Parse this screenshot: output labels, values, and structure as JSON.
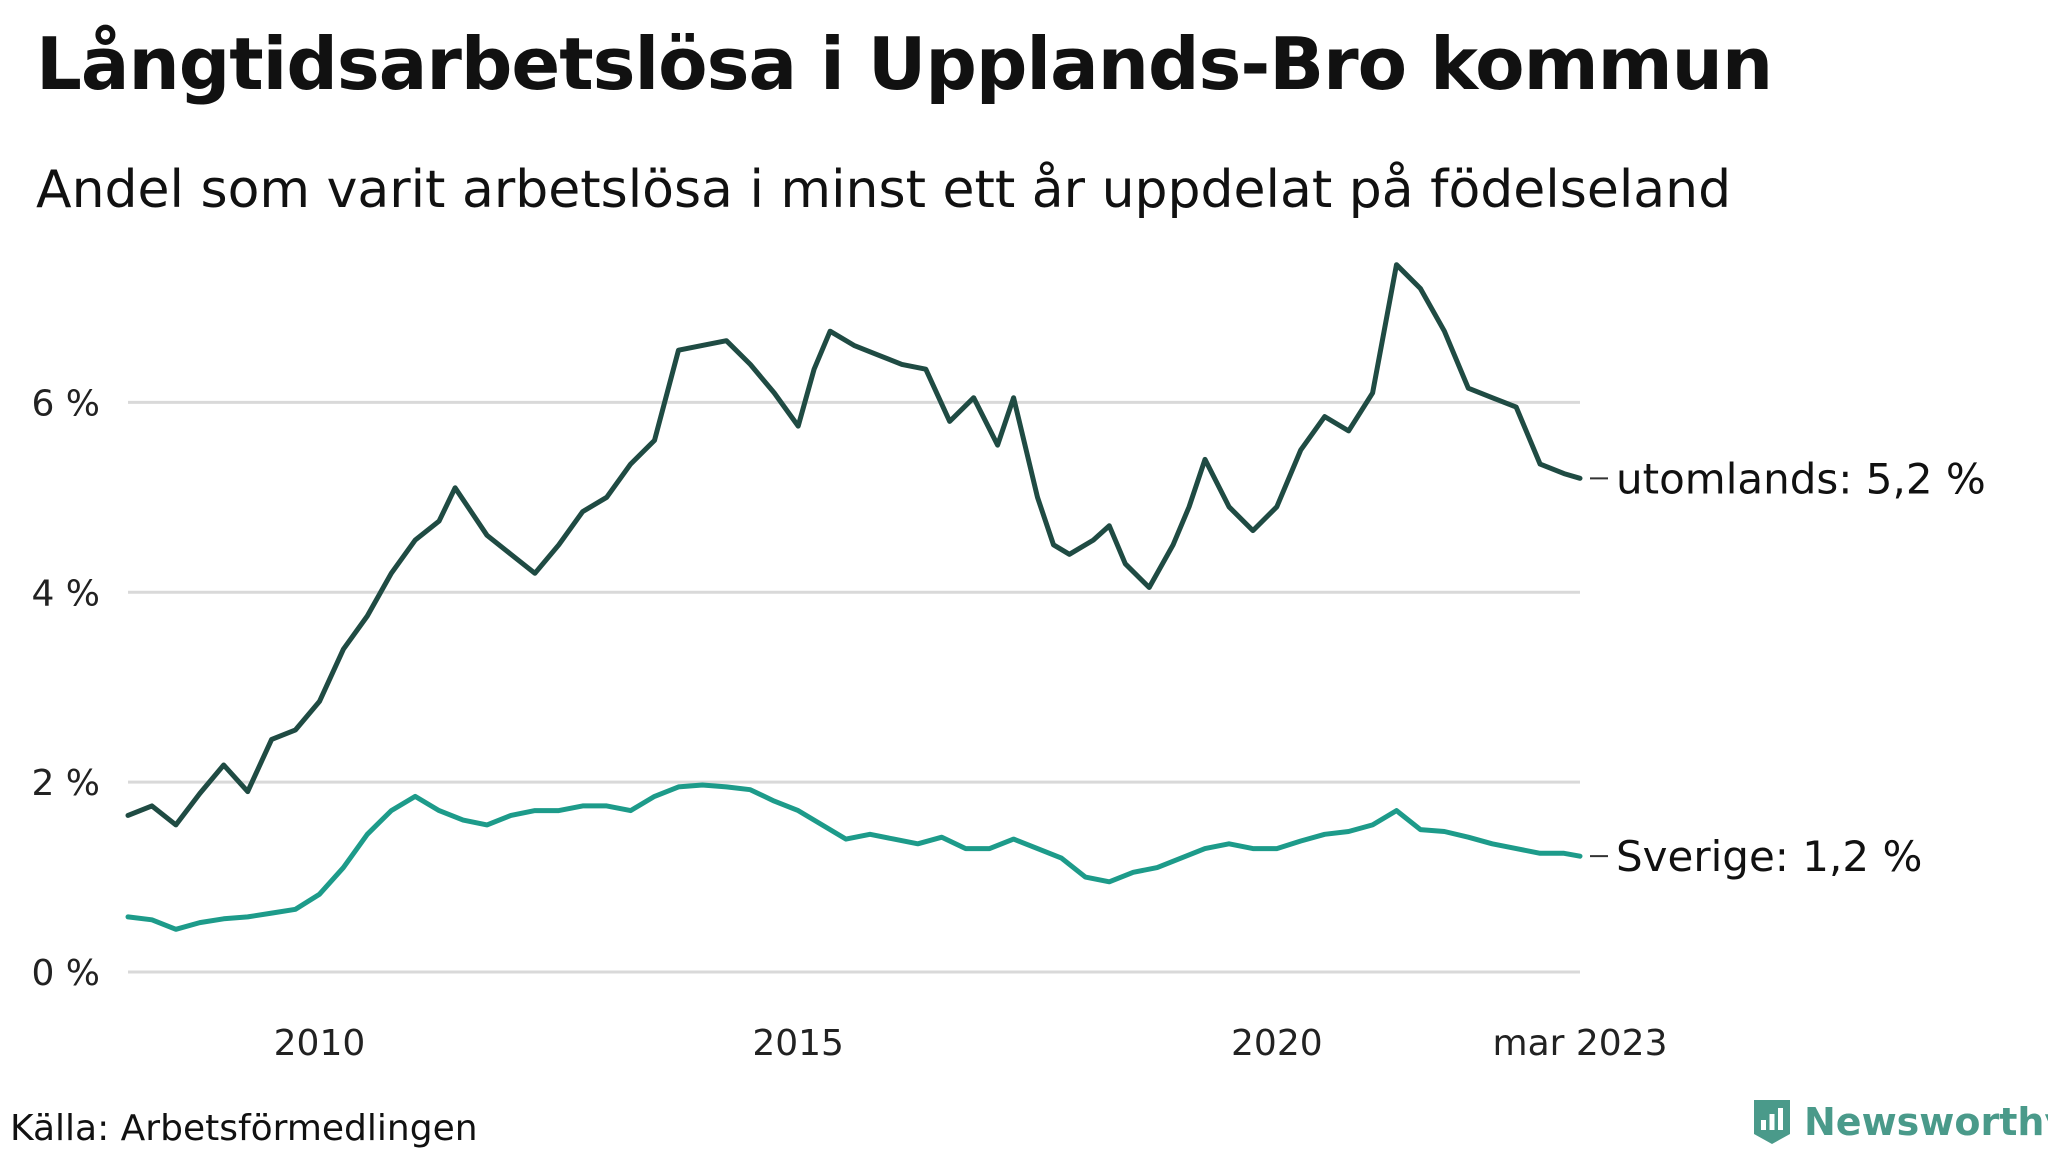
{
  "title": "Långtidsarbetslösa i Upplands-Bro kommun",
  "subtitle": "Andel som varit arbetslösa i minst ett år uppdelat på födelseland",
  "source": "Källa: Arbetsförmedlingen",
  "brand": "Newsworthy",
  "colors": {
    "utomlands": "#1f4b43",
    "sverige": "#1d9b8a",
    "grid": "#d9d9d9",
    "brand": "#4a9a8a"
  },
  "chart_data": {
    "type": "line",
    "title": "Långtidsarbetslösa i Upplands-Bro kommun",
    "subtitle": "Andel som varit arbetslösa i minst ett år uppdelat på födelseland",
    "x_range": [
      "2008-01",
      "2023-03"
    ],
    "ylim": [
      0,
      7.5
    ],
    "y_ticks": [
      0,
      2,
      4,
      6
    ],
    "y_tick_labels": [
      "0 %",
      "2 %",
      "4 %",
      "6 %"
    ],
    "x_tick_labels": [
      "2010",
      "2015",
      "2020",
      "mar 2023"
    ],
    "x_tick_dates": [
      "2010-01",
      "2015-01",
      "2020-01",
      "2023-03"
    ],
    "grid": true,
    "legend": "end-of-line labels",
    "series": [
      {
        "name": "utomlands",
        "end_label": "utomlands: 5,2 %",
        "color": "#1f4b43",
        "points": [
          [
            "2008-01",
            1.65
          ],
          [
            "2008-04",
            1.75
          ],
          [
            "2008-07",
            1.55
          ],
          [
            "2008-10",
            1.88
          ],
          [
            "2009-01",
            2.18
          ],
          [
            "2009-04",
            1.9
          ],
          [
            "2009-07",
            2.45
          ],
          [
            "2009-10",
            2.55
          ],
          [
            "2010-01",
            2.85
          ],
          [
            "2010-04",
            3.4
          ],
          [
            "2010-07",
            3.75
          ],
          [
            "2010-10",
            4.2
          ],
          [
            "2011-01",
            4.55
          ],
          [
            "2011-04",
            4.75
          ],
          [
            "2011-06",
            5.1
          ],
          [
            "2011-08",
            4.85
          ],
          [
            "2011-10",
            4.6
          ],
          [
            "2012-01",
            4.4
          ],
          [
            "2012-04",
            4.2
          ],
          [
            "2012-07",
            4.5
          ],
          [
            "2012-10",
            4.85
          ],
          [
            "2013-01",
            5.0
          ],
          [
            "2013-04",
            5.35
          ],
          [
            "2013-07",
            5.6
          ],
          [
            "2013-10",
            6.55
          ],
          [
            "2014-01",
            6.6
          ],
          [
            "2014-04",
            6.65
          ],
          [
            "2014-07",
            6.4
          ],
          [
            "2014-10",
            6.1
          ],
          [
            "2015-01",
            5.75
          ],
          [
            "2015-03",
            6.35
          ],
          [
            "2015-05",
            6.75
          ],
          [
            "2015-08",
            6.6
          ],
          [
            "2015-11",
            6.5
          ],
          [
            "2016-02",
            6.4
          ],
          [
            "2016-05",
            6.35
          ],
          [
            "2016-08",
            5.8
          ],
          [
            "2016-11",
            6.05
          ],
          [
            "2017-02",
            5.55
          ],
          [
            "2017-04",
            6.05
          ],
          [
            "2017-07",
            5.0
          ],
          [
            "2017-09",
            4.5
          ],
          [
            "2017-11",
            4.4
          ],
          [
            "2018-02",
            4.55
          ],
          [
            "2018-04",
            4.7
          ],
          [
            "2018-06",
            4.3
          ],
          [
            "2018-09",
            4.05
          ],
          [
            "2018-12",
            4.5
          ],
          [
            "2019-02",
            4.9
          ],
          [
            "2019-04",
            5.4
          ],
          [
            "2019-07",
            4.9
          ],
          [
            "2019-10",
            4.65
          ],
          [
            "2020-01",
            4.9
          ],
          [
            "2020-04",
            5.5
          ],
          [
            "2020-07",
            5.85
          ],
          [
            "2020-10",
            5.7
          ],
          [
            "2021-01",
            6.1
          ],
          [
            "2021-04",
            7.45
          ],
          [
            "2021-07",
            7.2
          ],
          [
            "2021-10",
            6.75
          ],
          [
            "2022-01",
            6.15
          ],
          [
            "2022-04",
            6.05
          ],
          [
            "2022-07",
            5.95
          ],
          [
            "2022-10",
            5.35
          ],
          [
            "2023-01",
            5.25
          ],
          [
            "2023-03",
            5.2
          ]
        ]
      },
      {
        "name": "Sverige",
        "end_label": "Sverige: 1,2 %",
        "color": "#1d9b8a",
        "points": [
          [
            "2008-01",
            0.58
          ],
          [
            "2008-04",
            0.55
          ],
          [
            "2008-07",
            0.45
          ],
          [
            "2008-10",
            0.52
          ],
          [
            "2009-01",
            0.56
          ],
          [
            "2009-04",
            0.58
          ],
          [
            "2009-07",
            0.62
          ],
          [
            "2009-10",
            0.66
          ],
          [
            "2010-01",
            0.82
          ],
          [
            "2010-04",
            1.1
          ],
          [
            "2010-07",
            1.45
          ],
          [
            "2010-10",
            1.7
          ],
          [
            "2011-01",
            1.85
          ],
          [
            "2011-04",
            1.7
          ],
          [
            "2011-07",
            1.6
          ],
          [
            "2011-10",
            1.55
          ],
          [
            "2012-01",
            1.65
          ],
          [
            "2012-04",
            1.7
          ],
          [
            "2012-07",
            1.7
          ],
          [
            "2012-10",
            1.75
          ],
          [
            "2013-01",
            1.75
          ],
          [
            "2013-04",
            1.7
          ],
          [
            "2013-07",
            1.85
          ],
          [
            "2013-10",
            1.95
          ],
          [
            "2014-01",
            1.97
          ],
          [
            "2014-04",
            1.95
          ],
          [
            "2014-07",
            1.92
          ],
          [
            "2014-10",
            1.8
          ],
          [
            "2015-01",
            1.7
          ],
          [
            "2015-04",
            1.55
          ],
          [
            "2015-07",
            1.4
          ],
          [
            "2015-10",
            1.45
          ],
          [
            "2016-01",
            1.4
          ],
          [
            "2016-04",
            1.35
          ],
          [
            "2016-07",
            1.42
          ],
          [
            "2016-10",
            1.3
          ],
          [
            "2017-01",
            1.3
          ],
          [
            "2017-04",
            1.4
          ],
          [
            "2017-07",
            1.3
          ],
          [
            "2017-10",
            1.2
          ],
          [
            "2018-01",
            1.0
          ],
          [
            "2018-04",
            0.95
          ],
          [
            "2018-07",
            1.05
          ],
          [
            "2018-10",
            1.1
          ],
          [
            "2019-01",
            1.2
          ],
          [
            "2019-04",
            1.3
          ],
          [
            "2019-07",
            1.35
          ],
          [
            "2019-10",
            1.3
          ],
          [
            "2020-01",
            1.3
          ],
          [
            "2020-04",
            1.38
          ],
          [
            "2020-07",
            1.45
          ],
          [
            "2020-10",
            1.48
          ],
          [
            "2021-01",
            1.55
          ],
          [
            "2021-04",
            1.7
          ],
          [
            "2021-07",
            1.5
          ],
          [
            "2021-10",
            1.48
          ],
          [
            "2022-01",
            1.42
          ],
          [
            "2022-04",
            1.35
          ],
          [
            "2022-07",
            1.3
          ],
          [
            "2022-10",
            1.25
          ],
          [
            "2023-01",
            1.25
          ],
          [
            "2023-03",
            1.22
          ]
        ]
      }
    ]
  }
}
